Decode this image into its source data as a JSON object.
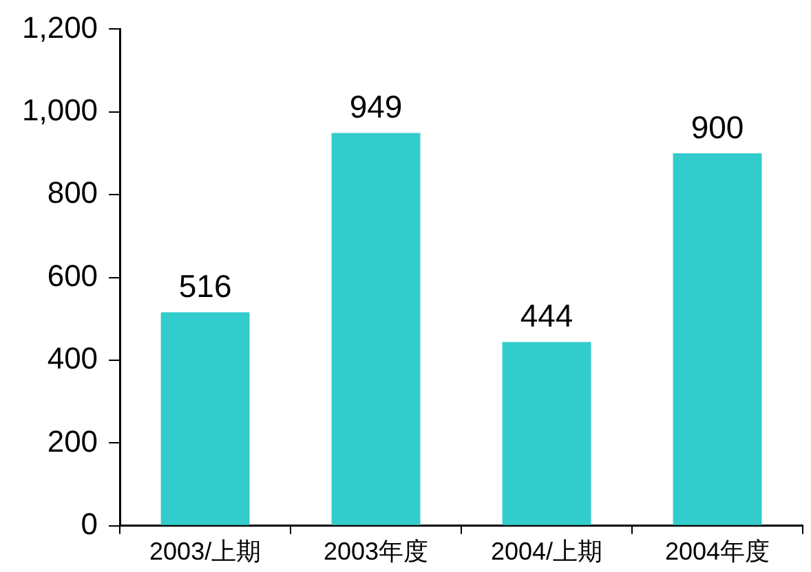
{
  "chart_data": {
    "type": "bar",
    "categories": [
      "2003/上期",
      "2003年度",
      "2004/上期",
      "2004年度"
    ],
    "values": [
      516,
      949,
      444,
      900
    ],
    "color": "#33cccc",
    "ylim": [
      0,
      1200
    ],
    "yticks": [
      0,
      200,
      400,
      600,
      800,
      {
        "value": 1000,
        "label": "1,000"
      },
      {
        "value": 1200,
        "label": "1,200"
      }
    ],
    "grid": false,
    "legend": false,
    "data_labels": true
  }
}
